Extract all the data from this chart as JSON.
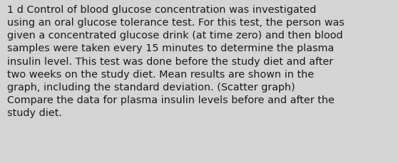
{
  "text": "1 d Control of blood glucose concentration was investigated\nusing an oral glucose tolerance test. For this test, the person was\ngiven a concentrated glucose drink (at time zero) and then blood\nsamples were taken every 15 minutes to determine the plasma\ninsulin level. This test was done before the study diet and after\ntwo weeks on the study diet. Mean results are shown in the\ngraph, including the standard deviation. (Scatter graph)\nCompare the data for plasma insulin levels before and after the\nstudy diet.",
  "background_color": "#d4d4d4",
  "text_color": "#1a1a1a",
  "font_size": 10.4,
  "font_family": "DejaVu Sans",
  "fig_width": 5.58,
  "fig_height": 2.3,
  "dpi": 100
}
